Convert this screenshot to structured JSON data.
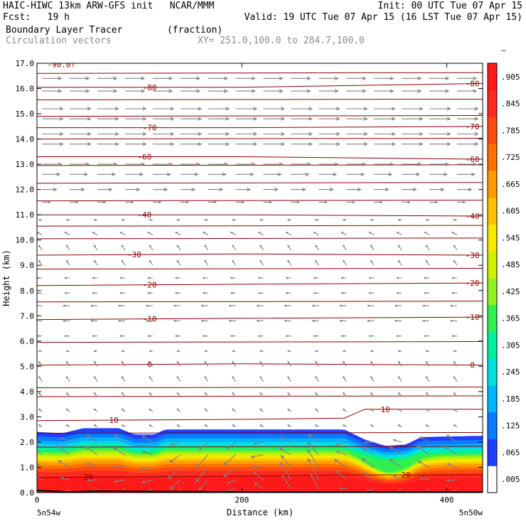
{
  "header": {
    "line1_left": "HAIC-HIWC 13km ARW-GFS init   NCAR/MMM",
    "line1_right": "Init: 00 UTC Tue 07 Apr 15",
    "line2_left": "Fcst:   19 h",
    "line2_right": "Valid: 19 UTC Tue 07 Apr 15 (16 LST Tue 07 Apr 15)",
    "line3_left": "Boundary Layer Tracer        (fraction)",
    "line4_left": "Circulation vectors",
    "line4_mid": "XY= 251.0,100.0 to 284.7,100.0"
  },
  "chart_data": {
    "type": "heatmap",
    "title": "Boundary Layer Tracer",
    "units": "(fraction)",
    "overlay": "Circulation vectors",
    "xlabel": "Distance (km)",
    "ylabel": "Height (km)",
    "xlim": [
      0,
      435
    ],
    "ylim": [
      0,
      17
    ],
    "x_ticks": [
      0,
      200,
      400
    ],
    "y_ticks": [
      "0.0",
      "1.0",
      "2.0",
      "3.0",
      "4.0",
      "5.0",
      "6.0",
      "7.0",
      "8.0",
      "9.0",
      "10.0",
      "11.0",
      "12.0",
      "13.0",
      "14.0",
      "15.0",
      "16.0",
      "17.0"
    ],
    "x_endpoints": {
      "left": "5n54w",
      "right": "5n50w"
    },
    "colorbar": {
      "labels": [
        ".005",
        ".065",
        ".125",
        ".185",
        ".245",
        ".305",
        ".365",
        ".425",
        ".485",
        ".545",
        ".605",
        ".665",
        ".725",
        ".785",
        ".845",
        ".905",
        "–"
      ],
      "colors": [
        "#ffffff",
        "#1f3fff",
        "#0a7bff",
        "#00b4ff",
        "#00e0e0",
        "#00f0a0",
        "#30f050",
        "#90f020",
        "#d0f000",
        "#f8e800",
        "#ffc000",
        "#ff9a00",
        "#ff7000",
        "#ff4a10",
        "#ff2a20",
        "#ff1a1a"
      ]
    },
    "tracer_top_km": [
      [
        0,
        2.4
      ],
      [
        25,
        2.35
      ],
      [
        45,
        2.55
      ],
      [
        80,
        2.55
      ],
      [
        95,
        2.3
      ],
      [
        115,
        2.3
      ],
      [
        125,
        2.5
      ],
      [
        200,
        2.5
      ],
      [
        300,
        2.5
      ],
      [
        320,
        2.1
      ],
      [
        340,
        1.85
      ],
      [
        360,
        1.9
      ],
      [
        375,
        2.2
      ],
      [
        435,
        2.25
      ]
    ],
    "temperature_contours_C": [
      {
        "label": "-80",
        "points": [
          [
            0,
            16.05
          ],
          [
            200,
            16.05
          ],
          [
            435,
            16.2
          ]
        ]
      },
      {
        "label": "-70",
        "points": [
          [
            0,
            14.45
          ],
          [
            200,
            14.45
          ],
          [
            435,
            14.5
          ]
        ]
      },
      {
        "label": "-60",
        "points": [
          [
            0,
            13.3
          ],
          [
            200,
            13.3
          ],
          [
            435,
            13.2
          ]
        ]
      },
      {
        "label": "-40",
        "points": [
          [
            0,
            11.0
          ],
          [
            200,
            11.0
          ],
          [
            435,
            10.95
          ]
        ]
      },
      {
        "label": "-30",
        "points": [
          [
            0,
            9.4
          ],
          [
            200,
            9.45
          ],
          [
            435,
            9.4
          ]
        ]
      },
      {
        "label": "-20",
        "points": [
          [
            0,
            8.2
          ],
          [
            200,
            8.25
          ],
          [
            435,
            8.3
          ]
        ]
      },
      {
        "label": "-10",
        "points": [
          [
            0,
            6.85
          ],
          [
            200,
            6.9
          ],
          [
            435,
            6.95
          ]
        ]
      },
      {
        "label": "0",
        "points": [
          [
            0,
            5.05
          ],
          [
            200,
            5.1
          ],
          [
            435,
            5.05
          ]
        ]
      },
      {
        "label": "10",
        "points": [
          [
            0,
            2.85
          ],
          [
            200,
            2.9
          ],
          [
            300,
            2.95
          ],
          [
            320,
            3.3
          ],
          [
            435,
            3.3
          ]
        ]
      },
      {
        "label": "20",
        "points": [
          [
            0,
            0.6
          ],
          [
            200,
            0.65
          ],
          [
            300,
            0.7
          ],
          [
            435,
            0.7
          ]
        ]
      }
    ],
    "contour_label_positions": [
      {
        "label": "-80",
        "xs": [
          110,
          425
        ]
      },
      {
        "label": "-70",
        "xs": [
          110,
          425
        ]
      },
      {
        "label": "-60",
        "xs": [
          105,
          425
        ]
      },
      {
        "label": "-40",
        "xs": [
          105,
          425
        ]
      },
      {
        "label": "-30",
        "xs": [
          95,
          425
        ]
      },
      {
        "label": "-20",
        "xs": [
          110,
          425
        ]
      },
      {
        "label": "-10",
        "xs": [
          110,
          425
        ]
      },
      {
        "label": "0",
        "xs": [
          110,
          425
        ]
      },
      {
        "label": "10",
        "xs": [
          75,
          340
        ]
      },
      {
        "label": "20",
        "xs": [
          50,
          360
        ]
      }
    ],
    "top_label": "-90.0?",
    "other_contours_km": [
      1.8,
      2.35,
      3.8,
      4.15,
      5.95,
      7.55,
      8.85,
      10.05,
      10.55,
      11.55,
      12.25,
      12.95,
      14.0,
      14.9,
      15.55,
      16.6
    ],
    "wind_rows": [
      {
        "z": 16.4,
        "u": 6,
        "w": 0
      },
      {
        "z": 15.9,
        "u": 6,
        "w": 0
      },
      {
        "z": 15.2,
        "u": 6.5,
        "w": 0
      },
      {
        "z": 14.8,
        "u": 6.5,
        "w": 0
      },
      {
        "z": 14.2,
        "u": 6.5,
        "w": 0
      },
      {
        "z": 13.8,
        "u": 6.5,
        "w": 0
      },
      {
        "z": 13.0,
        "u": 6,
        "w": 0
      },
      {
        "z": 12.6,
        "u": 5.5,
        "w": 0
      },
      {
        "z": 12.0,
        "u": 4.5,
        "w": 0
      },
      {
        "z": 11.5,
        "u": 2.5,
        "w": 0
      },
      {
        "z": 10.8,
        "u": -1,
        "w": 0
      },
      {
        "z": 10.2,
        "u": -1.5,
        "w": 0.3
      },
      {
        "z": 9.6,
        "u": -1,
        "w": 0.5
      },
      {
        "z": 9.0,
        "u": -1,
        "w": 0.5
      },
      {
        "z": 8.5,
        "u": -1.5,
        "w": 0
      },
      {
        "z": 7.9,
        "u": -1.5,
        "w": 0
      },
      {
        "z": 7.4,
        "u": -2,
        "w": 0
      },
      {
        "z": 6.8,
        "u": -2,
        "w": 0
      },
      {
        "z": 6.2,
        "u": -1.5,
        "w": 0
      },
      {
        "z": 5.6,
        "u": -1,
        "w": 0
      },
      {
        "z": 5.0,
        "u": -1,
        "w": 0.5
      },
      {
        "z": 4.4,
        "u": -1,
        "w": 0.5
      },
      {
        "z": 3.8,
        "u": -1,
        "w": 0.4
      },
      {
        "z": 3.2,
        "u": -1,
        "w": 0.3
      },
      {
        "z": 2.6,
        "u": -1,
        "w": 0.2
      },
      {
        "z": 2.0,
        "u": -2.5,
        "w": 0.2
      },
      {
        "z": 1.5,
        "u": -3,
        "w": 0.3
      },
      {
        "z": 1.0,
        "u": -3,
        "w": 0.3
      },
      {
        "z": 0.5,
        "u": -2.5,
        "w": 0.4
      },
      {
        "z": 0.15,
        "u": -2,
        "w": 0
      }
    ]
  }
}
